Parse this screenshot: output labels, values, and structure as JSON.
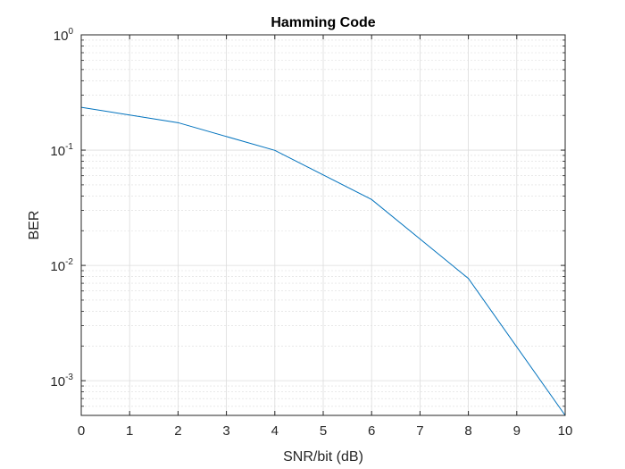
{
  "chart_data": {
    "type": "line",
    "title": "Hamming Code",
    "xlabel": "SNR/bit (dB)",
    "ylabel": "BER",
    "xlim": [
      0,
      10
    ],
    "ylim": [
      0.0005,
      1
    ],
    "yscale": "log",
    "grid": true,
    "minor_grid": true,
    "x_ticks": [
      0,
      1,
      2,
      3,
      4,
      5,
      6,
      7,
      8,
      9,
      10
    ],
    "y_ticks": [
      {
        "value": 0.001,
        "base": "10",
        "exp": "-3"
      },
      {
        "value": 0.01,
        "base": "10",
        "exp": "-2"
      },
      {
        "value": 0.1,
        "base": "10",
        "exp": "-1"
      },
      {
        "value": 1,
        "base": "10",
        "exp": "0"
      }
    ],
    "series": [
      {
        "color": "#0072bd",
        "x": [
          0,
          2,
          4,
          6,
          8,
          10
        ],
        "y": [
          0.235,
          0.173,
          0.0995,
          0.0373,
          0.0077,
          0.0005
        ]
      }
    ]
  }
}
